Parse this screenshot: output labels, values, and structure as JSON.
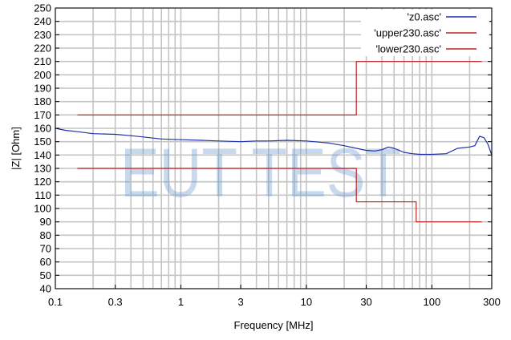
{
  "chart_data": {
    "type": "line",
    "title": "",
    "xlabel": "Frequency [MHz]",
    "ylabel": "|Z| [Ohm]",
    "x_scale": "log",
    "xlim": [
      0.1,
      300
    ],
    "ylim": [
      40,
      250
    ],
    "grid": true,
    "legend_position": "top-right",
    "x_ticks": [
      0.1,
      0.3,
      1,
      3,
      10,
      30,
      100,
      300
    ],
    "x_tick_labels": [
      "0.1",
      "0.3",
      "1",
      "3",
      "10",
      "30",
      "100",
      "300"
    ],
    "y_ticks": [
      40,
      50,
      60,
      70,
      80,
      90,
      100,
      110,
      120,
      130,
      140,
      150,
      160,
      170,
      180,
      190,
      200,
      210,
      220,
      230,
      240,
      250
    ],
    "y_tick_labels": [
      "40",
      "50",
      "60",
      "70",
      "80",
      "90",
      "100",
      "110",
      "120",
      "130",
      "140",
      "150",
      "160",
      "170",
      "180",
      "190",
      "200",
      "210",
      "220",
      "230",
      "240",
      "250"
    ],
    "watermark": "EUT TEST",
    "series": [
      {
        "name": "'z0.asc'",
        "color": "#1f2fa8",
        "points": [
          [
            0.1,
            160
          ],
          [
            0.12,
            158.5
          ],
          [
            0.15,
            157.5
          ],
          [
            0.2,
            156
          ],
          [
            0.3,
            155.5
          ],
          [
            0.4,
            154.5
          ],
          [
            0.5,
            153.5
          ],
          [
            0.7,
            152
          ],
          [
            1,
            151.5
          ],
          [
            1.5,
            151
          ],
          [
            2,
            150.5
          ],
          [
            3,
            150
          ],
          [
            4,
            150.5
          ],
          [
            5,
            150.5
          ],
          [
            7,
            151
          ],
          [
            10,
            150.5
          ],
          [
            15,
            149
          ],
          [
            20,
            147
          ],
          [
            25,
            145
          ],
          [
            30,
            143.5
          ],
          [
            35,
            143
          ],
          [
            40,
            144
          ],
          [
            45,
            146
          ],
          [
            50,
            145
          ],
          [
            60,
            142
          ],
          [
            70,
            141
          ],
          [
            80,
            140.5
          ],
          [
            100,
            140.5
          ],
          [
            130,
            141
          ],
          [
            160,
            145
          ],
          [
            200,
            146
          ],
          [
            220,
            147
          ],
          [
            240,
            154
          ],
          [
            260,
            153
          ],
          [
            280,
            148
          ],
          [
            300,
            140
          ]
        ]
      },
      {
        "name": "'upper230.asc'",
        "color": "#c0211f",
        "points": [
          [
            0.15,
            170
          ],
          [
            25,
            170
          ],
          [
            25,
            210
          ],
          [
            250,
            210
          ]
        ]
      },
      {
        "name": "'lower230.asc'",
        "color": "#c0211f",
        "points": [
          [
            0.15,
            130
          ],
          [
            25,
            130
          ],
          [
            25,
            105
          ],
          [
            75,
            105
          ],
          [
            75,
            90
          ],
          [
            250,
            90
          ]
        ]
      }
    ]
  }
}
